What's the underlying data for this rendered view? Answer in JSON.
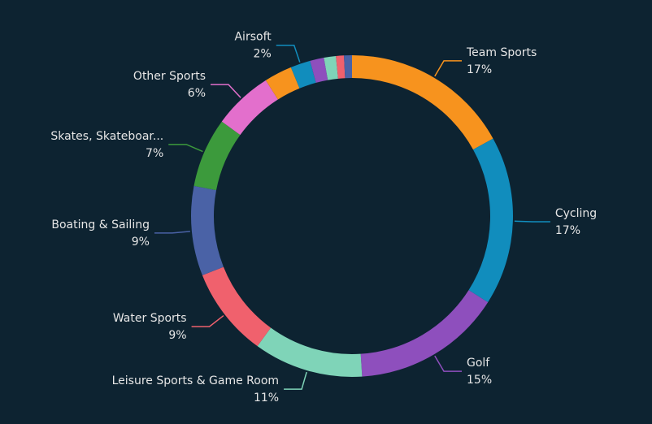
{
  "chart_data": {
    "type": "donut",
    "categories": [
      "Team Sports",
      "Cycling",
      "Golf",
      "Leisure Sports & Game Room",
      "Water Sports",
      "Boating & Sailing",
      "Skates, Skateboar...",
      "Other Sports",
      null,
      "Airsoft",
      null,
      null,
      null,
      null
    ],
    "values": [
      17,
      17,
      15,
      11,
      9,
      9,
      7,
      6,
      2.8,
      2,
      1.4,
      1.2,
      0.8,
      0.8
    ],
    "value_labels": [
      "17%",
      "17%",
      "15%",
      "11%",
      "9%",
      "9%",
      "7%",
      "6%",
      null,
      "2%",
      null,
      null,
      null,
      null
    ],
    "colors": [
      "#f7931e",
      "#118dbd",
      "#8e4fbd",
      "#7fd4b8",
      "#f0616d",
      "#4a62a6",
      "#3c9a3c",
      "#e36fcc",
      "#f7931e",
      "#118dbd",
      "#8e4fbd",
      "#7fd4b8",
      "#f0616d",
      "#4a62a6"
    ]
  }
}
